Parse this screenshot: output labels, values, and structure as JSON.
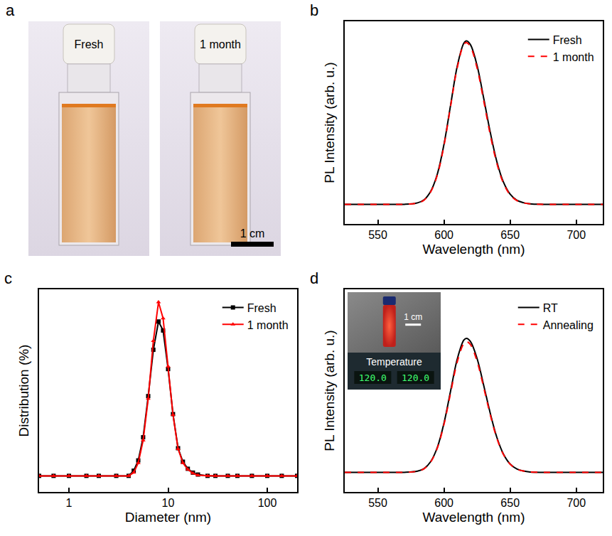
{
  "figure_a": {
    "panel_label": "a",
    "photos": [
      {
        "label": "Fresh"
      },
      {
        "label": "1 month"
      }
    ],
    "scale_bar": "1 cm"
  },
  "chart_data": [
    {
      "type": "line",
      "panel_label": "b",
      "x_label": "Wavelength (nm)",
      "y_label": "PL Intensity (arb. u.)",
      "x": [
        525,
        540,
        555,
        570,
        580,
        585,
        590,
        595,
        600,
        605,
        610,
        615,
        617,
        620,
        625,
        630,
        635,
        640,
        645,
        650,
        655,
        660,
        665,
        675,
        690,
        705,
        720
      ],
      "series": [
        {
          "name": "Fresh",
          "color": "#000000",
          "line_style": "solid",
          "values": [
            0,
            0,
            0,
            0,
            0.009,
            0.028,
            0.08,
            0.186,
            0.367,
            0.607,
            0.844,
            0.986,
            1.0,
            0.977,
            0.85,
            0.65,
            0.44,
            0.26,
            0.135,
            0.062,
            0.025,
            0.01,
            0.003,
            0,
            0,
            0,
            0
          ]
        },
        {
          "name": "1 month",
          "color": "#ff0000",
          "line_style": "dash",
          "values": [
            0,
            0,
            0,
            0,
            0.008,
            0.026,
            0.077,
            0.18,
            0.36,
            0.6,
            0.835,
            0.978,
            0.99,
            0.965,
            0.835,
            0.635,
            0.425,
            0.25,
            0.128,
            0.058,
            0.023,
            0.009,
            0.003,
            0,
            0,
            0,
            0
          ]
        }
      ],
      "xlim": [
        525,
        720
      ],
      "xticks": [
        550,
        600,
        650,
        700
      ],
      "ylim": [
        -0.12,
        1.12
      ],
      "tick_labels": "x",
      "grid": false,
      "legend": "upper right"
    },
    {
      "type": "line",
      "panel_label": "c",
      "x_label": "Diameter (nm)",
      "y_label": "Distribution (%)",
      "x": [
        0.5,
        0.7,
        1,
        1.5,
        2,
        3,
        4,
        4.5,
        5,
        5.6,
        6.3,
        7.1,
        8,
        8.9,
        10,
        11.2,
        12.6,
        14.1,
        15.8,
        17.8,
        20,
        25,
        30,
        40,
        50,
        70,
        100,
        140,
        200
      ],
      "series": [
        {
          "name": "Fresh",
          "color": "#000000",
          "line_style": "solid",
          "marker": "square",
          "values": [
            0,
            0,
            0,
            0,
            0,
            0,
            0,
            0.8,
            2.4,
            6.0,
            12.4,
            19.6,
            24,
            22.6,
            16.6,
            9.6,
            4.3,
            2.2,
            1.1,
            0.5,
            0.2,
            0,
            0,
            0,
            0,
            0,
            0,
            0,
            0
          ]
        },
        {
          "name": "1 month",
          "color": "#ff0000",
          "line_style": "solid",
          "marker": "triangle-up",
          "values": [
            0,
            0,
            0,
            0,
            0,
            0,
            0,
            0.5,
            2.0,
            5.5,
            12.0,
            21.0,
            27.0,
            24.5,
            17.0,
            9.5,
            4.2,
            2.0,
            1.0,
            0.4,
            0.1,
            0,
            0,
            0,
            0,
            0,
            0,
            0,
            0
          ]
        }
      ],
      "xlim": [
        0.5,
        200
      ],
      "xticks": [
        1,
        10,
        100
      ],
      "ylim": [
        -2.5,
        29
      ],
      "log": "x",
      "tick_labels": "x",
      "grid": false,
      "legend": "upper right"
    },
    {
      "type": "line",
      "panel_label": "d",
      "x_label": "Wavelength (nm)",
      "y_label": "PL Intensity (arb. u.)",
      "x": [
        525,
        540,
        555,
        570,
        580,
        585,
        590,
        595,
        600,
        605,
        610,
        615,
        617,
        620,
        625,
        630,
        635,
        640,
        645,
        650,
        655,
        660,
        665,
        675,
        690,
        705,
        720
      ],
      "series": [
        {
          "name": "RT",
          "color": "#000000",
          "line_style": "solid",
          "values": [
            0,
            0,
            0,
            0,
            0.007,
            0.023,
            0.066,
            0.153,
            0.301,
            0.498,
            0.692,
            0.809,
            0.82,
            0.801,
            0.697,
            0.533,
            0.361,
            0.213,
            0.111,
            0.051,
            0.021,
            0.008,
            0.002,
            0,
            0,
            0,
            0
          ]
        },
        {
          "name": "Annealing",
          "color": "#ff0000",
          "line_style": "dash",
          "values": [
            0,
            0,
            0,
            0,
            0.007,
            0.022,
            0.064,
            0.149,
            0.294,
            0.486,
            0.675,
            0.789,
            0.8,
            0.782,
            0.68,
            0.52,
            0.352,
            0.208,
            0.108,
            0.05,
            0.02,
            0.008,
            0.002,
            0,
            0,
            0,
            0
          ]
        }
      ],
      "xlim": [
        525,
        720
      ],
      "xticks": [
        550,
        600,
        650,
        700
      ],
      "ylim": [
        -0.12,
        1.12
      ],
      "tick_labels": "x",
      "grid": false,
      "legend": "upper right",
      "inset": {
        "scale_bar": "1 cm",
        "label": "Temperature",
        "readings": [
          "120.0",
          "120.0"
        ]
      }
    }
  ]
}
